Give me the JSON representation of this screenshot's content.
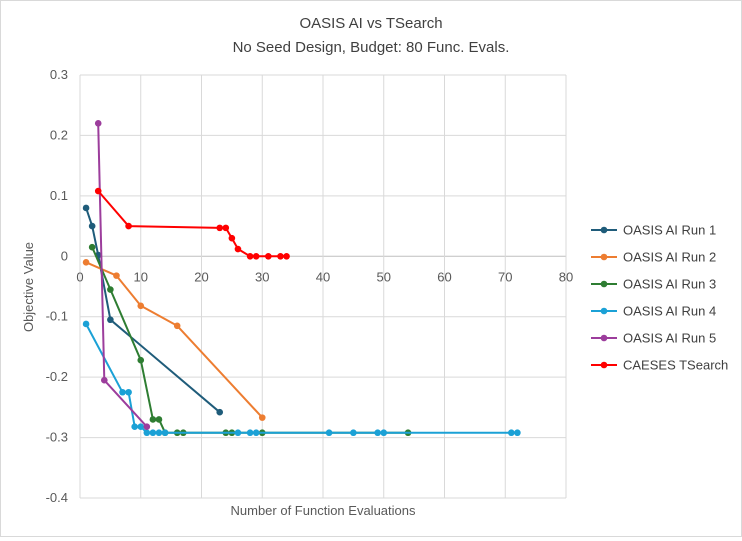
{
  "chart_data": {
    "type": "scatter",
    "title": "OASIS AI vs TSearch",
    "subtitle": "No Seed Design, Budget: 80 Func. Evals.",
    "xlabel": "Number of Function Evaluations",
    "ylabel": "Objective Value",
    "xlim": [
      0,
      80
    ],
    "ylim": [
      -0.4,
      0.3
    ],
    "xticks": [
      0,
      10,
      20,
      30,
      40,
      50,
      60,
      70,
      80
    ],
    "yticks": [
      0.3,
      0.2,
      0.1,
      0,
      -0.1,
      -0.2,
      -0.3,
      -0.4
    ],
    "xtick_labels": [
      "0",
      "10",
      "20",
      "30",
      "40",
      "50",
      "60",
      "70",
      "80"
    ],
    "ytick_labels": [
      "0.3",
      "0.2",
      "0.1",
      "0",
      "-0.1",
      "-0.2",
      "-0.3",
      "-0.4"
    ],
    "grid": "horizontal and vertical",
    "legend_position": "right",
    "series": [
      {
        "name": "OASIS AI Run 1",
        "color": "#1f5c7a",
        "points": [
          [
            1,
            0.08
          ],
          [
            2,
            0.05
          ],
          [
            3,
            0.002
          ],
          [
            5,
            -0.105
          ],
          [
            23,
            -0.258
          ]
        ]
      },
      {
        "name": "OASIS AI Run 2",
        "color": "#ed7d31",
        "points": [
          [
            1,
            -0.01
          ],
          [
            6,
            -0.032
          ],
          [
            10,
            -0.082
          ],
          [
            16,
            -0.115
          ],
          [
            30,
            -0.267
          ]
        ]
      },
      {
        "name": "OASIS AI Run 3",
        "color": "#2e7d32",
        "points": [
          [
            2,
            0.015
          ],
          [
            5,
            -0.055
          ],
          [
            10,
            -0.172
          ],
          [
            12,
            -0.27
          ],
          [
            13,
            -0.27
          ],
          [
            14,
            -0.292
          ],
          [
            16,
            -0.292
          ],
          [
            17,
            -0.292
          ],
          [
            24,
            -0.292
          ],
          [
            25,
            -0.292
          ],
          [
            30,
            -0.292
          ],
          [
            54,
            -0.292
          ]
        ]
      },
      {
        "name": "OASIS AI Run 4",
        "color": "#1ba1d6",
        "points": [
          [
            1,
            -0.112
          ],
          [
            7,
            -0.225
          ],
          [
            8,
            -0.225
          ],
          [
            9,
            -0.282
          ],
          [
            10,
            -0.282
          ],
          [
            11,
            -0.292
          ],
          [
            12,
            -0.292
          ],
          [
            13,
            -0.292
          ],
          [
            14,
            -0.292
          ],
          [
            26,
            -0.292
          ],
          [
            28,
            -0.292
          ],
          [
            29,
            -0.292
          ],
          [
            41,
            -0.292
          ],
          [
            45,
            -0.292
          ],
          [
            49,
            -0.292
          ],
          [
            50,
            -0.292
          ],
          [
            71,
            -0.292
          ],
          [
            72,
            -0.292
          ]
        ]
      },
      {
        "name": "OASIS AI Run 5",
        "color": "#9c3d9c",
        "points": [
          [
            3,
            0.22
          ],
          [
            4,
            -0.205
          ],
          [
            11,
            -0.282
          ]
        ]
      },
      {
        "name": "CAESES TSearch",
        "color": "#ff0000",
        "points": [
          [
            3,
            0.108
          ],
          [
            8,
            0.05
          ],
          [
            23,
            0.047
          ],
          [
            24,
            0.047
          ],
          [
            25,
            0.03
          ],
          [
            26,
            0.012
          ],
          [
            28,
            0.0
          ],
          [
            29,
            0.0
          ],
          [
            31,
            0.0
          ],
          [
            33,
            0.0
          ],
          [
            34,
            0.0
          ]
        ]
      }
    ]
  }
}
